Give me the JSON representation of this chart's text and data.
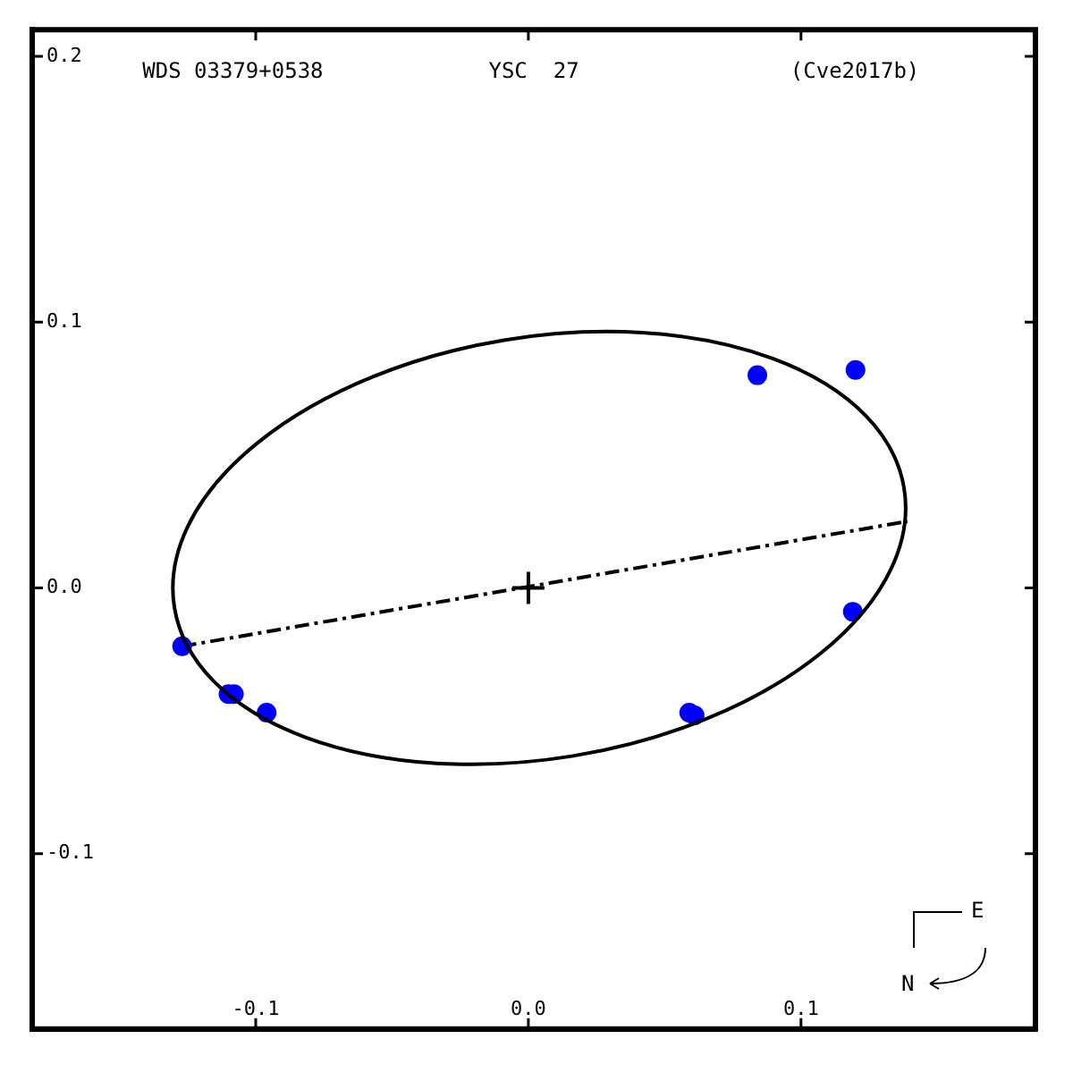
{
  "chart_data": {
    "type": "scatter",
    "annotations": [
      "WDS 03379+0538",
      "YSC  27",
      "(Cve2017b)",
      "E",
      "N"
    ],
    "xlim": [
      -0.182,
      0.186
    ],
    "ylim": [
      -0.166,
      0.21
    ],
    "xticks": [
      -0.1,
      {
        "value": 0,
        "label": "0.0"
      },
      0.1
    ],
    "yticks": [
      -0.1,
      {
        "value": 0,
        "label": "0.0"
      },
      0.1,
      0.2
    ],
    "grid": false,
    "legend": false,
    "series": [
      {
        "type": "line",
        "color": "#000000",
        "marker": "none",
        "line_style": "dashed",
        "x": [
          -0.127,
          0.139
        ],
        "values": [
          -0.022,
          0.025
        ]
      },
      {
        "color": "#0000ff",
        "marker": "circle",
        "x": [
          0.084,
          0.12,
          0.119,
          0.061,
          0.059,
          -0.096,
          -0.108,
          -0.11,
          -0.127
        ],
        "values": [
          0.08,
          0.082,
          -0.009,
          -0.048,
          -0.047,
          -0.047,
          -0.04,
          -0.04,
          -0.022
        ]
      },
      {
        "color": "#000000",
        "marker": "cross",
        "x": [
          0
        ],
        "values": [
          0
        ]
      }
    ]
  }
}
